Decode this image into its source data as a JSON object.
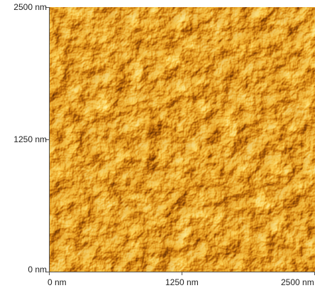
{
  "image": {
    "subject": "surface topography texture",
    "colors": {
      "dark": "#5a2b05",
      "mid": "#c97a12",
      "light": "#f7d36a",
      "highlight": "#fff0a8"
    }
  },
  "axes": {
    "y_ticks": [
      "2500 nm",
      "1250 nm",
      "0 nm"
    ],
    "x_ticks": [
      "0 nm",
      "1250 nm",
      "2500 nm"
    ]
  }
}
